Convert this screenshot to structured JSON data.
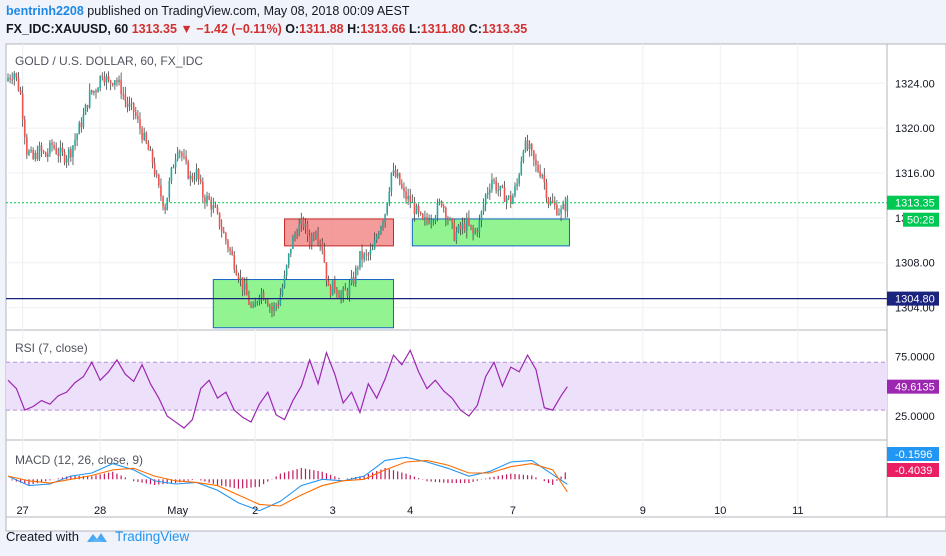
{
  "header": {
    "author": "bentrinh2208",
    "published": "published on TradingView.com, May 08, 2018 00:09 AEST",
    "symbol": "FX_IDC:XAUUSD, 60",
    "last": "1313.35",
    "change_arrow": "▼",
    "change": "−1.42 (−0.11%)",
    "o_label": "O:",
    "o": "1311.88",
    "h_label": "H:",
    "h": "1313.66",
    "l_label": "L:",
    "l": "1311.80",
    "c_label": "C:",
    "c": "1313.35"
  },
  "footer": {
    "created_with": "Created with",
    "brand": "TradingView"
  },
  "colors": {
    "up": "#26a69a",
    "down": "#ef5350",
    "bg": "#ffffff",
    "rsi_band": "#ede0fb",
    "rsi_line": "#9c27b0",
    "macd_line": "#2196f3",
    "signal_line": "#ff6d00",
    "hist": "#c2185b",
    "last_price": "#00c853",
    "level": "#1a237e",
    "support_zone": "#7ef27e",
    "resistance_zone": "#f28b8b"
  },
  "chart_data": [
    {
      "type": "candlestick",
      "title": "GOLD / U.S. DOLLAR, 60, FX_IDC",
      "ylim": [
        1302.0,
        1327.5
      ],
      "yticks": [
        1304.0,
        1308.0,
        1312.0,
        1316.0,
        1320.0,
        1324.0
      ],
      "ytick_labels": [
        "1304.00",
        "1308.00",
        "1312.00",
        "1316.00",
        "1320.00",
        "1324.00"
      ],
      "x_labels": [
        "27",
        "28",
        "May",
        "2",
        "3",
        "4",
        "7",
        "9",
        "10",
        "11"
      ],
      "last_price": 1313.35,
      "last_price_label": "1313.35",
      "countdown_label": "50:28",
      "horizontal_level": 1304.8,
      "horizontal_level_label": "1304.80",
      "zones": [
        {
          "kind": "support",
          "x_start": "May 1",
          "x_end": "May 3",
          "y_low": 1302.2,
          "y_high": 1306.5
        },
        {
          "kind": "resistance",
          "x_start": "May 2",
          "x_end": "May 3",
          "y_low": 1309.5,
          "y_high": 1311.9
        },
        {
          "kind": "support",
          "x_start": "May 4",
          "x_end": "May 7",
          "y_low": 1309.5,
          "y_high": 1311.9
        }
      ],
      "close_path": [
        [
          0,
          1324.5
        ],
        [
          3,
          1325.0
        ],
        [
          6,
          1323.0
        ],
        [
          9,
          1318.0
        ],
        [
          12,
          1317.2
        ],
        [
          15,
          1318.0
        ],
        [
          18,
          1317.5
        ],
        [
          21,
          1318.5
        ],
        [
          24,
          1317.8
        ],
        [
          27,
          1317.5
        ],
        [
          30,
          1318.0
        ],
        [
          33,
          1319.5
        ],
        [
          36,
          1321.0
        ],
        [
          39,
          1323.0
        ],
        [
          42,
          1323.5
        ],
        [
          45,
          1325.0
        ],
        [
          48,
          1324.0
        ],
        [
          51,
          1324.5
        ],
        [
          54,
          1323.5
        ],
        [
          57,
          1322.0
        ],
        [
          60,
          1321.5
        ],
        [
          63,
          1320.0
        ],
        [
          66,
          1318.5
        ],
        [
          69,
          1317.0
        ],
        [
          72,
          1314.5
        ],
        [
          75,
          1313.0
        ],
        [
          78,
          1316.0
        ],
        [
          81,
          1318.5
        ],
        [
          84,
          1317.0
        ],
        [
          87,
          1315.5
        ],
        [
          90,
          1316.0
        ],
        [
          93,
          1314.0
        ],
        [
          96,
          1313.5
        ],
        [
          99,
          1312.5
        ],
        [
          102,
          1311.0
        ],
        [
          105,
          1309.5
        ],
        [
          108,
          1308.0
        ],
        [
          111,
          1306.5
        ],
        [
          114,
          1305.0
        ],
        [
          117,
          1303.5
        ],
        [
          120,
          1305.5
        ],
        [
          123,
          1305.0
        ],
        [
          126,
          1303.8
        ],
        [
          129,
          1304.5
        ],
        [
          132,
          1306.5
        ],
        [
          135,
          1309.5
        ],
        [
          138,
          1311.0
        ],
        [
          141,
          1311.5
        ],
        [
          144,
          1310.0
        ],
        [
          147,
          1311.0
        ],
        [
          150,
          1309.5
        ],
        [
          153,
          1305.5
        ],
        [
          156,
          1306.0
        ],
        [
          159,
          1305.0
        ],
        [
          162,
          1305.5
        ],
        [
          165,
          1306.5
        ],
        [
          168,
          1308.5
        ],
        [
          171,
          1308.5
        ],
        [
          174,
          1309.0
        ],
        [
          177,
          1311.0
        ],
        [
          180,
          1312.5
        ],
        [
          183,
          1316.0
        ],
        [
          186,
          1315.5
        ],
        [
          189,
          1314.0
        ],
        [
          192,
          1313.5
        ],
        [
          195,
          1312.5
        ],
        [
          198,
          1311.5
        ],
        [
          201,
          1312.0
        ],
        [
          204,
          1312.5
        ],
        [
          207,
          1313.5
        ],
        [
          210,
          1312.0
        ],
        [
          213,
          1310.5
        ],
        [
          216,
          1311.0
        ],
        [
          219,
          1311.5
        ],
        [
          222,
          1310.5
        ],
        [
          225,
          1311.5
        ],
        [
          228,
          1314.0
        ],
        [
          231,
          1315.5
        ],
        [
          234,
          1314.5
        ],
        [
          237,
          1314.0
        ],
        [
          240,
          1313.5
        ],
        [
          243,
          1315.0
        ],
        [
          246,
          1318.5
        ],
        [
          249,
          1318.0
        ],
        [
          252,
          1316.5
        ],
        [
          255,
          1316.0
        ],
        [
          258,
          1313.5
        ],
        [
          261,
          1313.0
        ],
        [
          264,
          1312.5
        ],
        [
          267,
          1313.35
        ]
      ]
    },
    {
      "type": "line",
      "title": "RSI (7, close)",
      "ylim": [
        5,
        97
      ],
      "yticks": [
        25,
        75
      ],
      "ytick_labels": [
        "25.0000",
        "75.0000"
      ],
      "band": [
        30,
        70
      ],
      "last_value": 49.6135,
      "last_value_label": "49.6135",
      "series": [
        {
          "name": "RSI",
          "x": [
            0,
            4,
            8,
            12,
            16,
            20,
            24,
            28,
            32,
            36,
            40,
            44,
            48,
            52,
            56,
            60,
            64,
            68,
            72,
            76,
            80,
            84,
            88,
            92,
            96,
            100,
            104,
            108,
            112,
            116,
            120,
            124,
            128,
            132,
            136,
            140,
            144,
            148,
            152,
            156,
            160,
            164,
            168,
            172,
            176,
            180,
            184,
            188,
            192,
            196,
            200,
            204,
            208,
            212,
            216,
            220,
            224,
            228,
            232,
            236,
            240,
            244,
            248,
            252,
            256,
            260,
            264,
            267
          ],
          "values": [
            55,
            48,
            30,
            33,
            38,
            35,
            42,
            45,
            53,
            58,
            70,
            55,
            62,
            72,
            60,
            54,
            68,
            52,
            40,
            25,
            20,
            15,
            22,
            48,
            55,
            40,
            45,
            30,
            24,
            20,
            35,
            45,
            26,
            22,
            38,
            50,
            72,
            52,
            78,
            60,
            36,
            45,
            28,
            52,
            40,
            56,
            76,
            68,
            80,
            62,
            48,
            55,
            46,
            40,
            30,
            25,
            34,
            58,
            70,
            50,
            66,
            62,
            76,
            64,
            32,
            30,
            42,
            49.6
          ]
        }
      ]
    },
    {
      "type": "line",
      "title": "MACD (12, 26, close, 9)",
      "ylim": [
        -1.2,
        1.25
      ],
      "last_macd": -0.1596,
      "last_macd_label": "-0.1596",
      "last_signal": -0.4039,
      "last_signal_label": "-0.4039",
      "series": [
        {
          "name": "MACD",
          "x": [
            0,
            10,
            20,
            30,
            40,
            50,
            60,
            70,
            80,
            90,
            100,
            110,
            120,
            130,
            140,
            150,
            160,
            170,
            180,
            190,
            200,
            210,
            220,
            230,
            240,
            250,
            260,
            267
          ],
          "values": [
            0.1,
            -0.2,
            -0.15,
            0.1,
            0.2,
            0.5,
            0.3,
            -0.05,
            -0.15,
            -0.1,
            -0.35,
            -0.75,
            -1.0,
            -0.7,
            -0.2,
            0.0,
            -0.05,
            0.1,
            0.6,
            0.7,
            0.55,
            0.35,
            0.1,
            0.25,
            0.55,
            0.6,
            0.15,
            -0.16
          ]
        },
        {
          "name": "Signal",
          "x": [
            0,
            10,
            20,
            30,
            40,
            50,
            60,
            70,
            80,
            90,
            100,
            110,
            120,
            130,
            140,
            150,
            160,
            170,
            180,
            190,
            200,
            210,
            220,
            230,
            240,
            250,
            260,
            267
          ],
          "values": [
            0.1,
            -0.05,
            -0.12,
            0.0,
            0.12,
            0.3,
            0.35,
            0.1,
            -0.05,
            -0.1,
            -0.2,
            -0.5,
            -0.8,
            -0.85,
            -0.5,
            -0.2,
            -0.05,
            0.0,
            0.3,
            0.55,
            0.6,
            0.45,
            0.2,
            0.2,
            0.4,
            0.5,
            0.3,
            -0.4
          ]
        }
      ]
    }
  ]
}
